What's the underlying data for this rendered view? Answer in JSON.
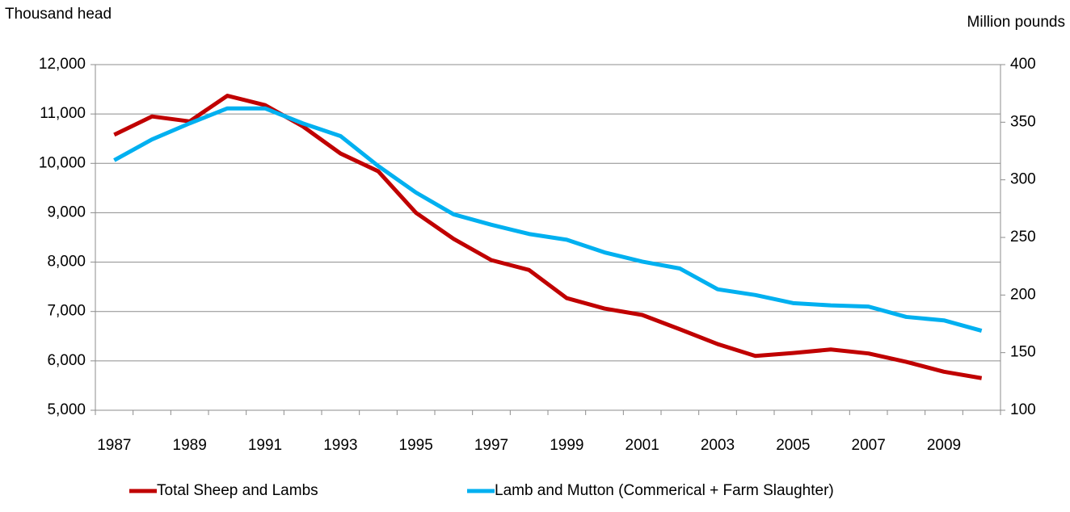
{
  "chart_data": {
    "type": "line",
    "y_label": "Thousand head",
    "y2_label": "Million pounds",
    "x": [
      1987,
      1988,
      1989,
      1990,
      1991,
      1992,
      1993,
      1994,
      1995,
      1996,
      1997,
      1998,
      1999,
      2000,
      2001,
      2002,
      2003,
      2004,
      2005,
      2006,
      2007,
      2008,
      2009,
      2010
    ],
    "xlim": [
      1986.5,
      2010.5
    ],
    "xticks": [
      1987,
      1989,
      1991,
      1993,
      1995,
      1997,
      1999,
      2001,
      2003,
      2005,
      2007,
      2009
    ],
    "ylim": [
      5000,
      12000
    ],
    "yticks": [
      {
        "value": 5000,
        "label": "5,000"
      },
      {
        "value": 6000,
        "label": "6,000"
      },
      {
        "value": 7000,
        "label": "7,000"
      },
      {
        "value": 8000,
        "label": "8,000"
      },
      {
        "value": 9000,
        "label": "9,000"
      },
      {
        "value": 10000,
        "label": "10,000"
      },
      {
        "value": 11000,
        "label": "11,000"
      },
      {
        "value": 12000,
        "label": "12,000"
      }
    ],
    "y2lim": [
      100,
      400
    ],
    "y2ticks": [
      100,
      150,
      200,
      250,
      300,
      350,
      400
    ],
    "grid": true,
    "series": [
      {
        "name": "Total Sheep and Lambs",
        "color": "#c00000",
        "values": [
          10580,
          10950,
          10850,
          11370,
          11180,
          10750,
          10200,
          9840,
          9000,
          8470,
          8040,
          7840,
          7270,
          7060,
          6930,
          6640,
          6340,
          6100,
          6160,
          6230,
          6150,
          5980,
          5780,
          5650
        ]
      },
      {
        "name": "Lamb and Mutton (Commerical + Farm Slaughter)",
        "color": "#00b0f0",
        "axis": "y2",
        "values": [
          317,
          335,
          349,
          362,
          362,
          349,
          338,
          312,
          289,
          270,
          261,
          253,
          248,
          237,
          229,
          223,
          205,
          200,
          193,
          191,
          190,
          181,
          178,
          169
        ]
      }
    ]
  }
}
